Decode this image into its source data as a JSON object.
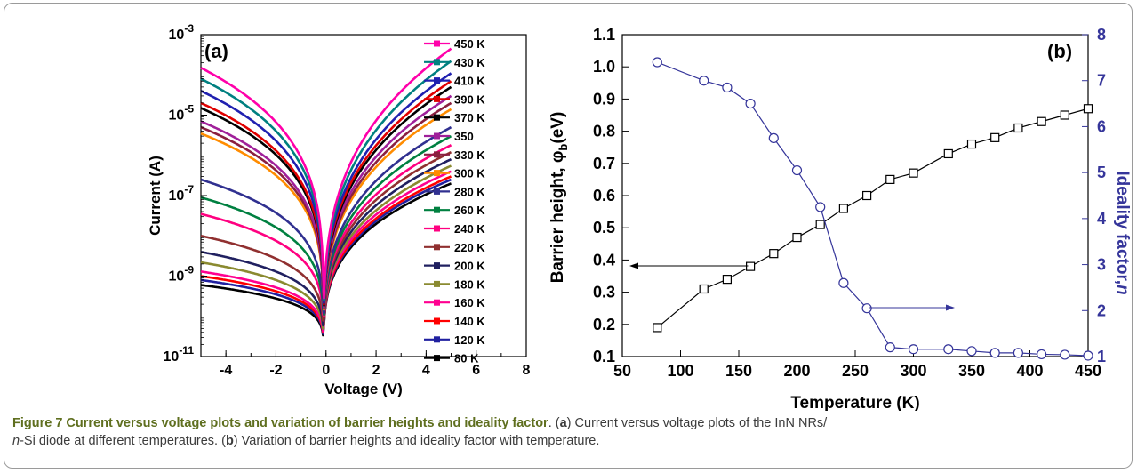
{
  "colors": {
    "axis": "#000000",
    "ideality": "#35359a",
    "caption_label": "#5f6f1f"
  },
  "chart_data": [
    {
      "type": "line",
      "panel_label": "(a)",
      "xlabel": "Voltage (V)",
      "ylabel": "Current (A)",
      "xlim": [
        -5,
        8
      ],
      "ylim": [
        1e-11,
        0.001
      ],
      "yscale": "log",
      "xticks": [
        -4,
        -2,
        0,
        2,
        4,
        6,
        8
      ],
      "ytick_labels": [
        {
          "mant": "10",
          "exp": "-11",
          "v": -11
        },
        {
          "mant": "10",
          "exp": "-9",
          "v": -9
        },
        {
          "mant": "10",
          "exp": "-7",
          "v": -7
        },
        {
          "mant": "10",
          "exp": "-5",
          "v": -5
        },
        {
          "mant": "10",
          "exp": "-3",
          "v": -3
        }
      ],
      "legend_position": "right",
      "series": [
        {
          "name": "450 K",
          "color": "#ff00aa",
          "marker": "square",
          "i_neg5": 0.00015,
          "i_pos5": 0.00045
        },
        {
          "name": "430 K",
          "color": "#008080",
          "marker": "square",
          "i_neg5": 8e-05,
          "i_pos5": 0.00022
        },
        {
          "name": "410 K",
          "color": "#2020b0",
          "marker": "square",
          "i_neg5": 4e-05,
          "i_pos5": 0.00011
        },
        {
          "name": "390 K",
          "color": "#e00000",
          "marker": "square",
          "i_neg5": 2e-05,
          "i_pos5": 7e-05
        },
        {
          "name": "370 K",
          "color": "#000000",
          "marker": "square",
          "i_neg5": 1.5e-05,
          "i_pos5": 5e-05
        },
        {
          "name": "350",
          "color": "#a0209a",
          "marker": "square",
          "i_neg5": 7e-06,
          "i_pos5": 3e-05
        },
        {
          "name": "330 K",
          "color": "#8a2040",
          "marker": "square",
          "i_neg5": 5e-06,
          "i_pos5": 2e-05
        },
        {
          "name": "300 K",
          "color": "#ff8c00",
          "marker": "square",
          "i_neg5": 3.5e-06,
          "i_pos5": 1.4e-05
        },
        {
          "name": "280 K",
          "color": "#303090",
          "marker": "square",
          "i_neg5": 2.5e-07,
          "i_pos5": 5e-06
        },
        {
          "name": "260 K",
          "color": "#008040",
          "marker": "square",
          "i_neg5": 9e-08,
          "i_pos5": 3e-06
        },
        {
          "name": "240 K",
          "color": "#ff0080",
          "marker": "square",
          "i_neg5": 3.5e-08,
          "i_pos5": 1.8e-06
        },
        {
          "name": "220 K",
          "color": "#903030",
          "marker": "square",
          "i_neg5": 1e-08,
          "i_pos5": 1.2e-06
        },
        {
          "name": "200 K",
          "color": "#202060",
          "marker": "square",
          "i_neg5": 4e-09,
          "i_pos5": 8e-07
        },
        {
          "name": "180 K",
          "color": "#8a8a30",
          "marker": "square",
          "i_neg5": 2.2e-09,
          "i_pos5": 5.5e-07
        },
        {
          "name": "160 K",
          "color": "#ff0090",
          "marker": "square",
          "i_neg5": 1.3e-09,
          "i_pos5": 4e-07
        },
        {
          "name": "140 K",
          "color": "#ff0000",
          "marker": "square",
          "i_neg5": 1e-09,
          "i_pos5": 3e-07
        },
        {
          "name": "120 K",
          "color": "#2020a0",
          "marker": "square",
          "i_neg5": 8e-10,
          "i_pos5": 2.5e-07
        },
        {
          "name": "80 K",
          "color": "#000000",
          "marker": "square",
          "i_neg5": 6e-10,
          "i_pos5": 2e-07
        }
      ]
    },
    {
      "type": "line",
      "panel_label": "(b)",
      "xlabel": "Temperature (K)",
      "ylabel": "Barrier height, φb(eV)",
      "ylabel_main": "Barrier height, φ",
      "ylabel_sub": "b",
      "ylabel_tail": "(eV)",
      "y2label": "Ideality factor, n",
      "y2label_main": "Ideality factor,",
      "y2label_ital": "n",
      "xlim": [
        50,
        450
      ],
      "ylim": [
        0.1,
        1.1
      ],
      "y2lim": [
        1,
        8
      ],
      "xticks": [
        50,
        100,
        150,
        200,
        250,
        300,
        350,
        400,
        450
      ],
      "yticks": [
        "0.1",
        "0.2",
        "0.3",
        "0.4",
        "0.5",
        "0.6",
        "0.7",
        "0.8",
        "0.9",
        "1.0",
        "1.1"
      ],
      "y2ticks": [
        1,
        2,
        3,
        4,
        5,
        6,
        7,
        8
      ],
      "series": [
        {
          "name": "Barrier height",
          "axis": "left",
          "marker": "open-square",
          "color": "#000000",
          "x": [
            80,
            120,
            140,
            160,
            180,
            200,
            220,
            240,
            260,
            280,
            300,
            330,
            350,
            370,
            390,
            410,
            430,
            450
          ],
          "y": [
            0.19,
            0.31,
            0.34,
            0.38,
            0.42,
            0.47,
            0.51,
            0.56,
            0.6,
            0.65,
            0.67,
            0.73,
            0.76,
            0.78,
            0.81,
            0.83,
            0.85,
            0.87
          ]
        },
        {
          "name": "Ideality factor",
          "axis": "right",
          "marker": "open-circle",
          "color": "#35359a",
          "x": [
            80,
            120,
            140,
            160,
            180,
            200,
            220,
            240,
            260,
            280,
            300,
            330,
            350,
            370,
            390,
            410,
            430,
            450
          ],
          "y": [
            7.4,
            7.0,
            6.85,
            6.5,
            5.75,
            5.05,
            4.25,
            2.6,
            2.05,
            1.2,
            1.16,
            1.16,
            1.12,
            1.08,
            1.08,
            1.05,
            1.04,
            1.02
          ]
        }
      ],
      "annotations": [
        "arrow-left-to-barrier-axis",
        "arrow-right-to-ideality-axis"
      ]
    }
  ],
  "caption": {
    "label": "Figure 7 Current versus voltage plots and variation of barrier heights and ideality factor",
    "p1": ". (",
    "a": "a",
    "p2": ") Current versus voltage plots of the InN NRs/",
    "ital_n": "n",
    "p3": "-Si diode at different temperatures. (",
    "b": "b",
    "p4": ") Variation of barrier heights and ideality factor with temperature."
  }
}
